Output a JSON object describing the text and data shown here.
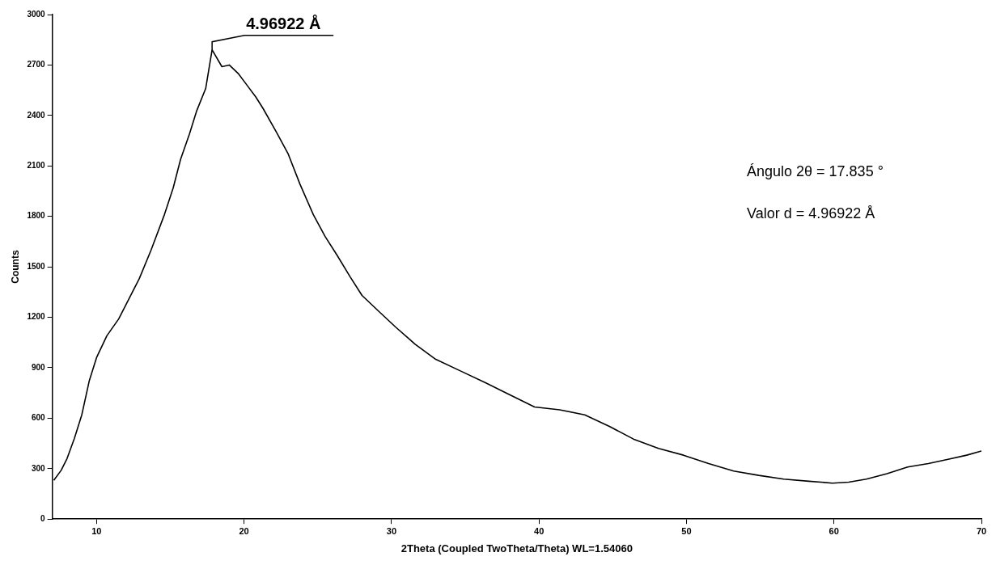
{
  "chart_data": {
    "type": "line",
    "xlabel": "2Theta (Coupled TwoTheta/Theta) WL=1.54060",
    "ylabel": "Counts",
    "xlim": [
      7,
      70
    ],
    "xticks": [
      10,
      20,
      30,
      40,
      50,
      60,
      70
    ],
    "ylim": [
      0,
      3000
    ],
    "yticks": [
      0,
      300,
      600,
      900,
      1200,
      1500,
      1800,
      2100,
      2400,
      2700,
      3000
    ],
    "grid": false,
    "legend": false,
    "marker": "none",
    "line_style": "solid",
    "series": [
      {
        "color": "#000000",
        "x": [
          7.1,
          7.6,
          8,
          8.5,
          9,
          9.5,
          10,
          10.7,
          11.5,
          12.2,
          12.9,
          13.7,
          14.6,
          15.2,
          15.7,
          16.3,
          16.8,
          17.4,
          17.835,
          18.5,
          19,
          19.6,
          20.2,
          20.8,
          21.3,
          22.2,
          23,
          23.8,
          24.7,
          25.5,
          26.3,
          27.2,
          28,
          29.2,
          30.3,
          31.6,
          33,
          34.7,
          36.4,
          38,
          39.7,
          41.4,
          43.1,
          44.8,
          46.4,
          48.1,
          49.8,
          51.5,
          53.2,
          54.9,
          56.6,
          58.3,
          59.9,
          61,
          62.2,
          63.6,
          65,
          66.4,
          67.8,
          69,
          70
        ],
        "values": [
          230,
          290,
          360,
          480,
          620,
          820,
          960,
          1090,
          1190,
          1310,
          1430,
          1600,
          1810,
          1970,
          2140,
          2290,
          2430,
          2560,
          2790,
          2690,
          2700,
          2650,
          2580,
          2510,
          2440,
          2300,
          2170,
          1990,
          1810,
          1680,
          1570,
          1440,
          1330,
          1230,
          1140,
          1040,
          950,
          880,
          810,
          740,
          667,
          650,
          620,
          550,
          476,
          420,
          380,
          330,
          286,
          260,
          238,
          225,
          214,
          220,
          238,
          270,
          310,
          330,
          357,
          380,
          405
        ]
      }
    ],
    "annotations": [
      {
        "text": "4.96922 Å",
        "x": 17.835,
        "y": 2790
      },
      "Ángulo 2θ = 17.835 °",
      "Valor d = 4.96922 Å"
    ]
  }
}
